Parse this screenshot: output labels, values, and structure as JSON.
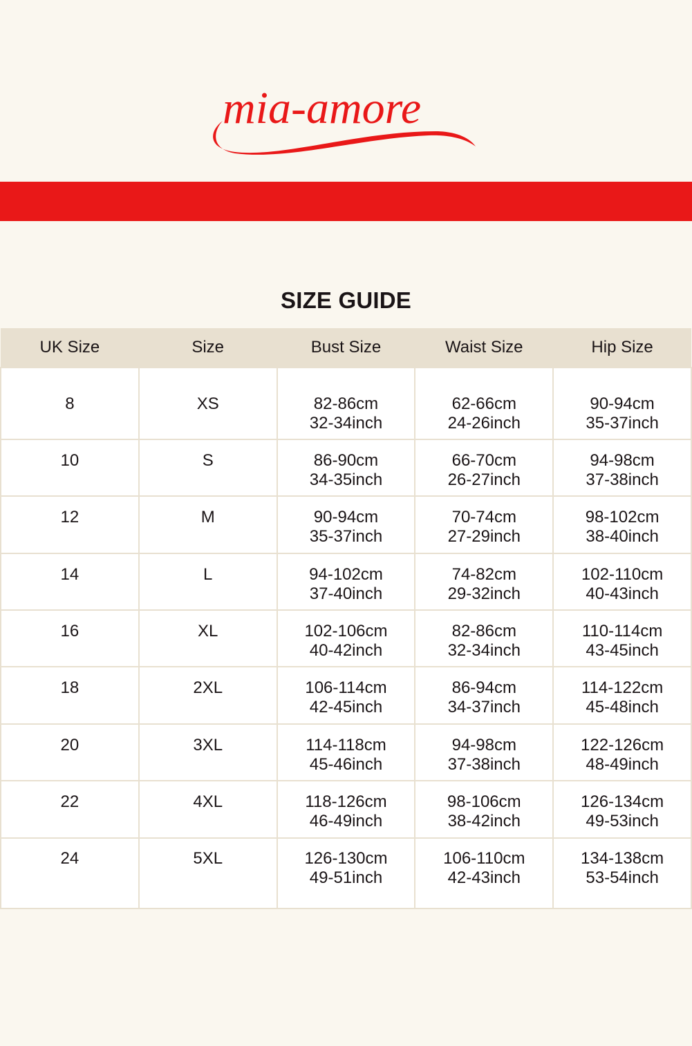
{
  "brand": {
    "logo_text": "mia-amore",
    "color": "#e91818"
  },
  "title": "SIZE GUIDE",
  "table": {
    "headers": [
      "UK Size",
      "Size",
      "Bust Size",
      "Waist Size",
      "Hip Size"
    ],
    "rows": [
      [
        [
          "8"
        ],
        [
          "XS"
        ],
        [
          "82-86cm",
          "32-34inch"
        ],
        [
          "62-66cm",
          "24-26inch"
        ],
        [
          "90-94cm",
          "35-37inch"
        ]
      ],
      [
        [
          "10"
        ],
        [
          "S"
        ],
        [
          "86-90cm",
          "34-35inch"
        ],
        [
          "66-70cm",
          "26-27inch"
        ],
        [
          "94-98cm",
          "37-38inch"
        ]
      ],
      [
        [
          "12"
        ],
        [
          "M"
        ],
        [
          "90-94cm",
          "35-37inch"
        ],
        [
          "70-74cm",
          "27-29inch"
        ],
        [
          "98-102cm",
          "38-40inch"
        ]
      ],
      [
        [
          "14"
        ],
        [
          "L"
        ],
        [
          "94-102cm",
          "37-40inch"
        ],
        [
          "74-82cm",
          "29-32inch"
        ],
        [
          "102-110cm",
          "40-43inch"
        ]
      ],
      [
        [
          "16"
        ],
        [
          "XL"
        ],
        [
          "102-106cm",
          "40-42inch"
        ],
        [
          "82-86cm",
          "32-34inch"
        ],
        [
          "110-114cm",
          "43-45inch"
        ]
      ],
      [
        [
          "18"
        ],
        [
          "2XL"
        ],
        [
          "106-114cm",
          "42-45inch"
        ],
        [
          "86-94cm",
          "34-37inch"
        ],
        [
          "114-122cm",
          "45-48inch"
        ]
      ],
      [
        [
          "20"
        ],
        [
          "3XL"
        ],
        [
          "114-118cm",
          "45-46inch"
        ],
        [
          "94-98cm",
          "37-38inch"
        ],
        [
          "122-126cm",
          "48-49inch"
        ]
      ],
      [
        [
          "22"
        ],
        [
          "4XL"
        ],
        [
          "118-126cm",
          "46-49inch"
        ],
        [
          "98-106cm",
          "38-42inch"
        ],
        [
          "126-134cm",
          "49-53inch"
        ]
      ],
      [
        [
          "24"
        ],
        [
          "5XL"
        ],
        [
          "126-130cm",
          "49-51inch"
        ],
        [
          "106-110cm",
          "42-43inch"
        ],
        [
          "134-138cm",
          "53-54inch"
        ]
      ]
    ]
  }
}
